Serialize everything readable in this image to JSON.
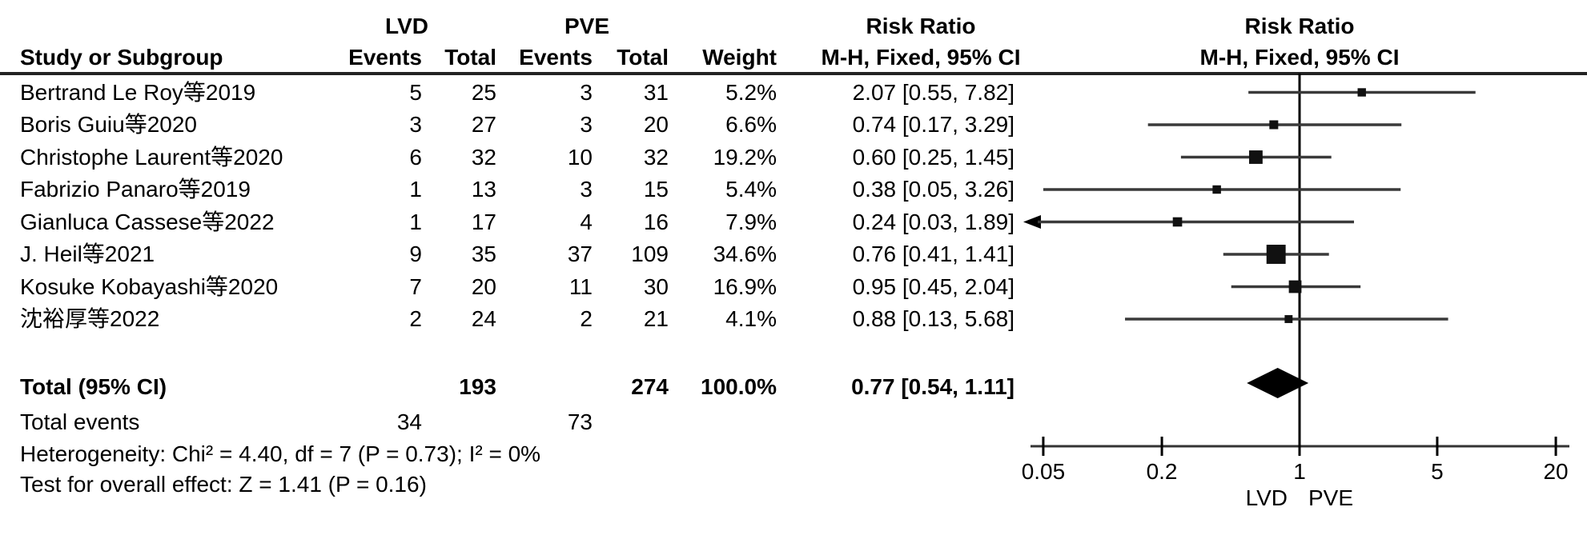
{
  "figure_title": "Forest plot: Risk Ratio, LVD vs PVE, M-H Fixed 95% CI",
  "header": {
    "study_col": "Study or Subgroup",
    "group_lvd": "LVD",
    "group_pve": "PVE",
    "events": "Events",
    "total": "Total",
    "weight": "Weight",
    "risk_ratio": "Risk Ratio",
    "mh_fixed_ci": "M-H, Fixed, 95% CI"
  },
  "footer_stats": {
    "total_label": "Total (95% CI)",
    "total_events_label": "Total events",
    "heterogeneity": "Heterogeneity: Chi² = 4.40, df = 7 (P = 0.73); I² = 0%",
    "overall_effect": "Test for overall effect: Z = 1.41 (P = 0.16)"
  },
  "colors": {
    "ink": "#000000",
    "ci_line": "#3a3a3a",
    "axis": "#333333",
    "rule": "#232323",
    "marker": "#111111"
  },
  "chart_data": {
    "type": "forest",
    "title": "Risk Ratio",
    "method": "M-H, Fixed, 95% CI",
    "xscale": "log",
    "x_axis": {
      "ticks": [
        0.05,
        0.2,
        1,
        5,
        20
      ],
      "tick_labels": [
        "0.05",
        "0.2",
        "1",
        "5",
        "20"
      ],
      "min": 0.05,
      "max": 20,
      "left_group": "LVD",
      "right_group": "PVE"
    },
    "studies": [
      {
        "name": "Bertrand Le Roy等2019",
        "lvd_events": 5,
        "lvd_total": 25,
        "pve_events": 3,
        "pve_total": 31,
        "weight": "5.2%",
        "weight_value": 5.2,
        "rr": 2.07,
        "ci_low": 0.55,
        "ci_high": 7.82,
        "label": "2.07 [0.55, 7.82]",
        "clamped_low": false
      },
      {
        "name": "Boris Guiu等2020",
        "lvd_events": 3,
        "lvd_total": 27,
        "pve_events": 3,
        "pve_total": 20,
        "weight": "6.6%",
        "weight_value": 6.6,
        "rr": 0.74,
        "ci_low": 0.17,
        "ci_high": 3.29,
        "label": "0.74 [0.17, 3.29]",
        "clamped_low": false
      },
      {
        "name": "Christophe Laurent等2020",
        "lvd_events": 6,
        "lvd_total": 32,
        "pve_events": 10,
        "pve_total": 32,
        "weight": "19.2%",
        "weight_value": 19.2,
        "rr": 0.6,
        "ci_low": 0.25,
        "ci_high": 1.45,
        "label": "0.60 [0.25, 1.45]",
        "clamped_low": false
      },
      {
        "name": "Fabrizio Panaro等2019",
        "lvd_events": 1,
        "lvd_total": 13,
        "pve_events": 3,
        "pve_total": 15,
        "weight": "5.4%",
        "weight_value": 5.4,
        "rr": 0.38,
        "ci_low": 0.05,
        "ci_high": 3.26,
        "label": "0.38 [0.05, 3.26]",
        "clamped_low": false
      },
      {
        "name": "Gianluca Cassese等2022",
        "lvd_events": 1,
        "lvd_total": 17,
        "pve_events": 4,
        "pve_total": 16,
        "weight": "7.9%",
        "weight_value": 7.9,
        "rr": 0.24,
        "ci_low": 0.03,
        "ci_high": 1.89,
        "label": "0.24 [0.03, 1.89]",
        "clamped_low": true
      },
      {
        "name": "J. Heil等2021",
        "lvd_events": 9,
        "lvd_total": 35,
        "pve_events": 37,
        "pve_total": 109,
        "weight": "34.6%",
        "weight_value": 34.6,
        "rr": 0.76,
        "ci_low": 0.41,
        "ci_high": 1.41,
        "label": "0.76 [0.41, 1.41]",
        "clamped_low": false
      },
      {
        "name": "Kosuke Kobayashi等2020",
        "lvd_events": 7,
        "lvd_total": 20,
        "pve_events": 11,
        "pve_total": 30,
        "weight": "16.9%",
        "weight_value": 16.9,
        "rr": 0.95,
        "ci_low": 0.45,
        "ci_high": 2.04,
        "label": "0.95 [0.45, 2.04]",
        "clamped_low": false
      },
      {
        "name": "沈裕厚等2022",
        "lvd_events": 2,
        "lvd_total": 24,
        "pve_events": 2,
        "pve_total": 21,
        "weight": "4.1%",
        "weight_value": 4.1,
        "rr": 0.88,
        "ci_low": 0.13,
        "ci_high": 5.68,
        "label": "0.88 [0.13, 5.68]",
        "clamped_low": false
      }
    ],
    "total": {
      "name": "Total (95% CI)",
      "lvd_total": 193,
      "pve_total": 274,
      "weight": "100.0%",
      "rr": 0.77,
      "ci_low": 0.54,
      "ci_high": 1.11,
      "label": "0.77 [0.54, 1.11]"
    },
    "total_events": {
      "lvd": 34,
      "pve": 73
    }
  }
}
